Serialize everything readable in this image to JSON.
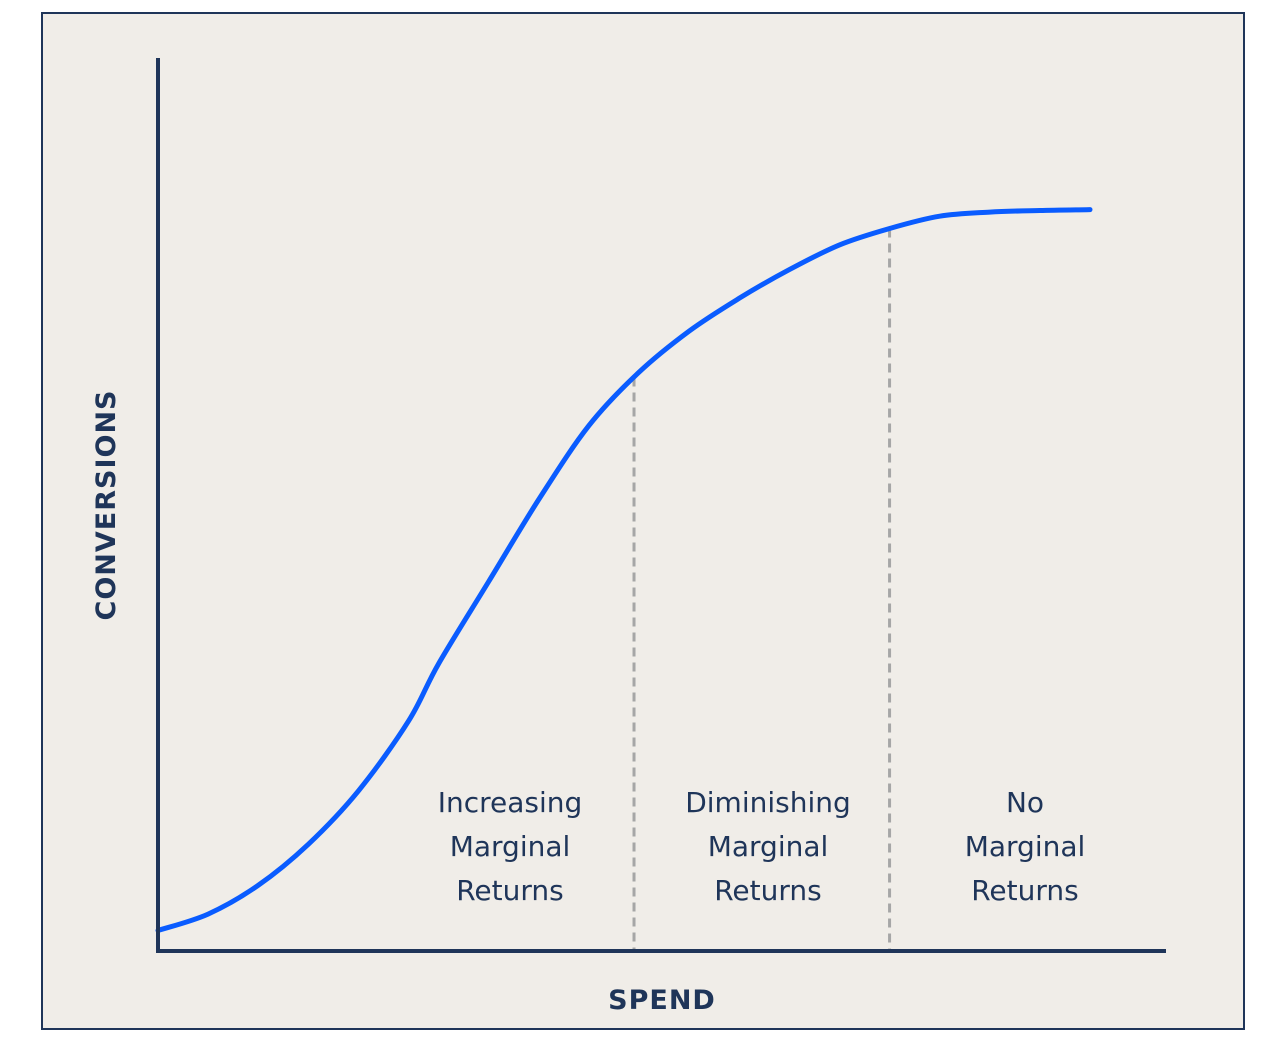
{
  "chart_data": {
    "type": "line",
    "title": "",
    "xlabel": "SPEND",
    "ylabel": "CONVERSIONS",
    "xlim": [
      0,
      100
    ],
    "ylim": [
      0,
      100
    ],
    "grid": false,
    "series": [
      {
        "color": "#0a5cff",
        "x": [
          0,
          5,
          10,
          15,
          20,
          25,
          28,
          33,
          38,
          43,
          48,
          53,
          58,
          63,
          68,
          73,
          78,
          83,
          88,
          93
        ],
        "y": [
          2.5,
          4.5,
          8,
          13,
          19.5,
          28,
          35,
          45,
          55,
          64,
          70.5,
          75.5,
          79.5,
          83,
          86,
          88,
          89.5,
          90,
          90.2,
          90.3
        ]
      }
    ],
    "zones": [
      {
        "label_lines": [
          "Increasing",
          "Marginal",
          "Returns"
        ],
        "x_start": 0,
        "x_end": 47.5
      },
      {
        "label_lines": [
          "Diminishing",
          "Marginal",
          "Returns"
        ],
        "x_start": 47.5,
        "x_end": 73
      },
      {
        "label_lines": [
          "No",
          "Marginal",
          "Returns"
        ],
        "x_start": 73,
        "x_end": 100
      }
    ],
    "dividers": [
      47.5,
      73
    ],
    "colors": {
      "axis": "#1f3559",
      "curve": "#0a5cff",
      "divider": "#a6a6a6",
      "background": "#f0ede8"
    }
  }
}
